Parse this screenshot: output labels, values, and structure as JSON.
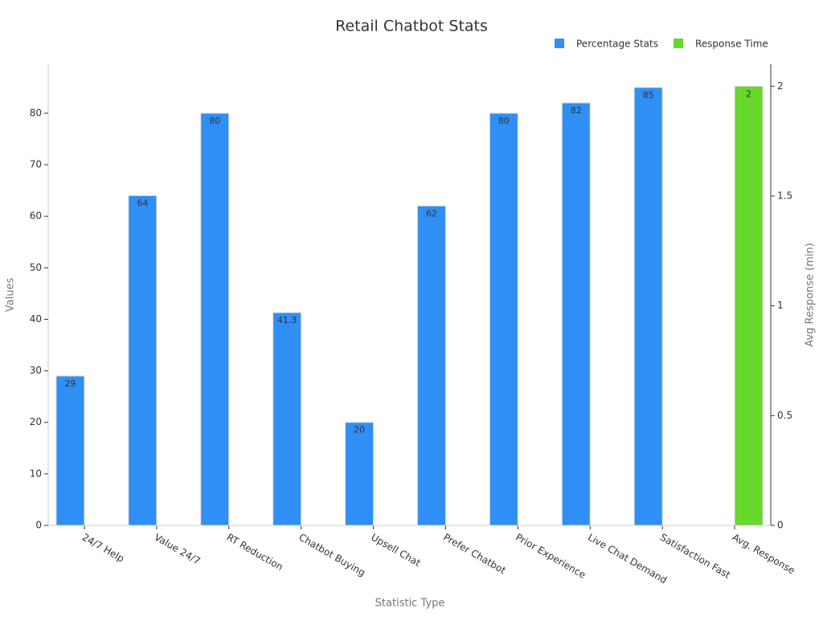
{
  "chart_data": {
    "type": "bar",
    "title": "Retail Chatbot Stats",
    "x_label": "Statistic Type",
    "y_label": "Values",
    "y2_label": "Avg Response (min)",
    "categories": [
      "24/7 Help",
      "Value 24/7",
      "RT Reduction",
      "Chatbot Buying",
      "Upsell Chat",
      "Prefer Chatbot",
      "Prior Experience",
      "Live Chat Demand",
      "Satisfaction Fast",
      "Avg. Response"
    ],
    "series": [
      {
        "name": "Percentage Stats",
        "color": "#2f8ff5",
        "values": [
          29,
          64,
          80,
          41.3,
          20,
          62,
          80,
          82,
          85,
          null
        ]
      },
      {
        "name": "Response Time",
        "color": "#66d92a",
        "axis": "y2",
        "values": [
          null,
          null,
          null,
          null,
          null,
          null,
          null,
          null,
          null,
          2
        ]
      }
    ],
    "ylim": [
      0,
      89.5
    ],
    "yticks": [
      0,
      10,
      20,
      30,
      40,
      50,
      60,
      70,
      80
    ],
    "y2lim": [
      0,
      2.1
    ],
    "y2ticks": [
      0,
      0.5,
      1,
      1.5,
      2
    ],
    "legend": "top-right"
  }
}
